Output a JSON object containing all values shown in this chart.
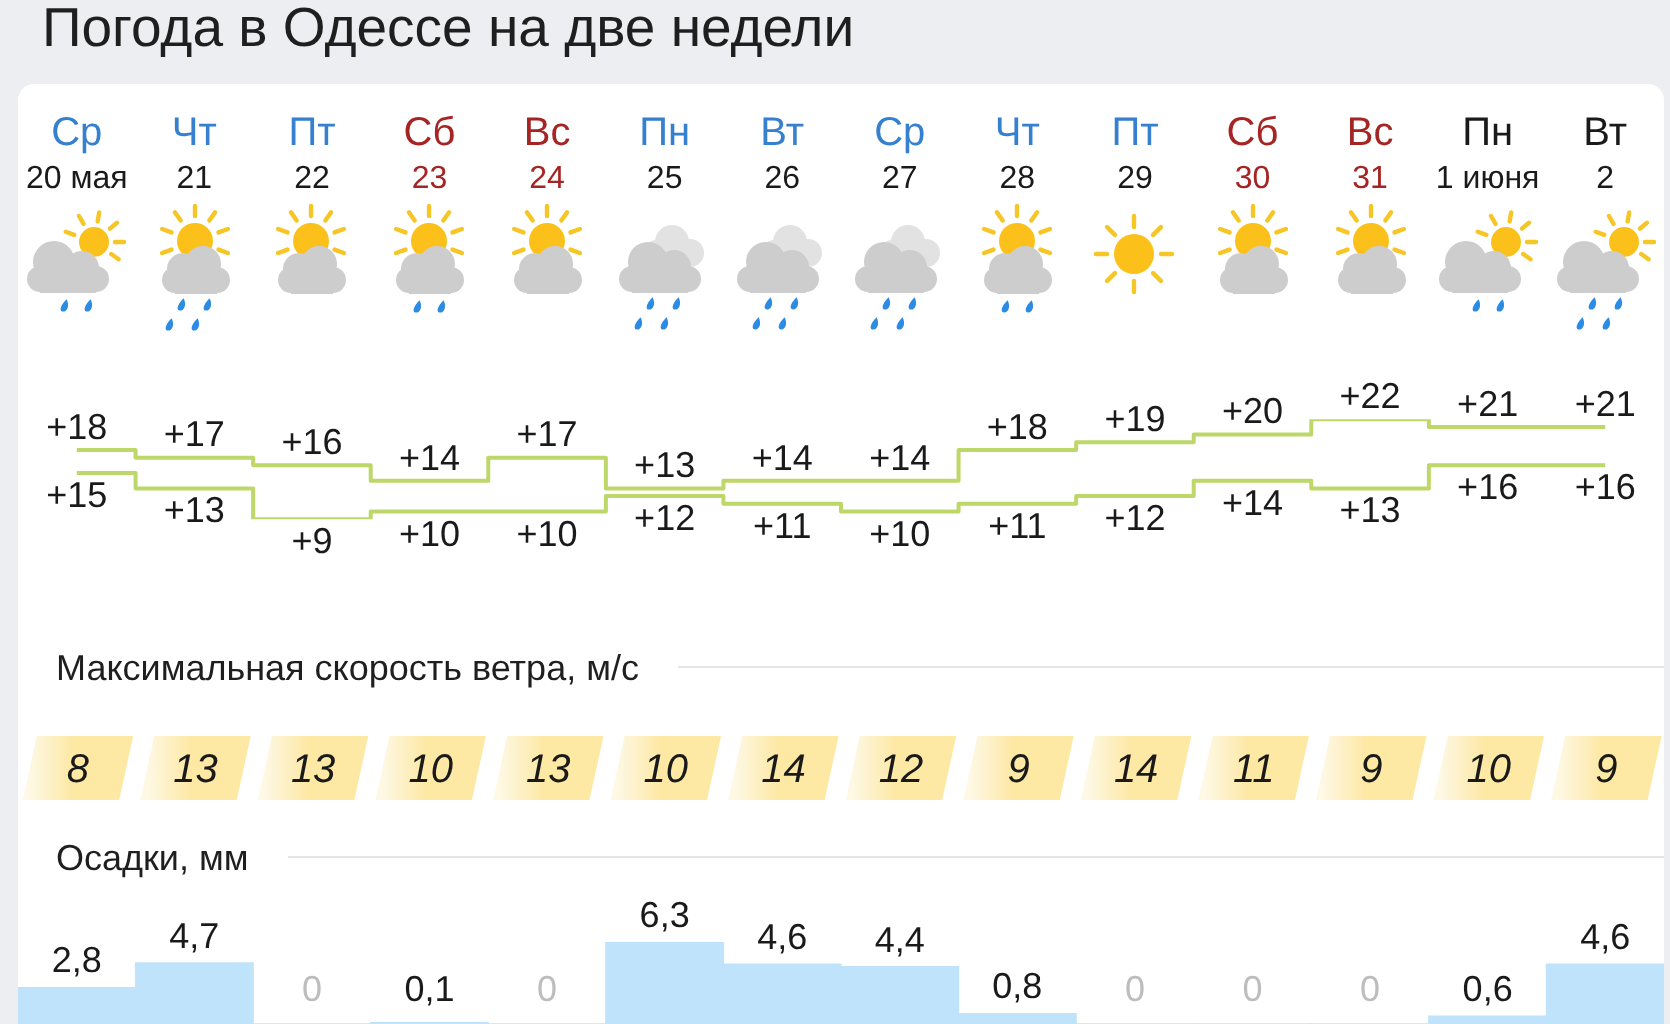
{
  "chart_data": [
    {
      "type": "step",
      "title": "Погода в Одессе на две недели",
      "categories": [
        "Ср\n20 мая",
        "Чт\n21",
        "Пт\n22",
        "Сб\n23",
        "Вс\n24",
        "Пн\n25",
        "Вт\n26",
        "Ср\n27",
        "Чт\n28",
        "Пт\n29",
        "Сб\n30",
        "Вс\n31",
        "Пн\n1 июня",
        "Вт\n2"
      ],
      "tick_labels": "x",
      "series": [
        {
          "color": "#bdd768",
          "values": [
            18,
            17,
            16,
            14,
            17,
            13,
            14,
            14,
            18,
            19,
            20,
            22,
            21,
            21
          ],
          "value_labels": [
            "+18",
            "+17",
            "+16",
            "+14",
            "+17",
            "+13",
            "+14",
            "+14",
            "+18",
            "+19",
            "+20",
            "+22",
            "+21",
            "+21"
          ]
        },
        {
          "color": "#bdd768",
          "values": [
            15,
            13,
            9,
            10,
            10,
            12,
            11,
            10,
            11,
            12,
            14,
            13,
            16,
            16
          ],
          "value_labels": [
            "+15",
            "+13",
            "+9",
            "+10",
            "+10",
            "+12",
            "+11",
            "+10",
            "+11",
            "+12",
            "+14",
            "+13",
            "+16",
            "+16"
          ]
        }
      ]
    },
    {
      "type": "other",
      "title": "Максимальная скорость ветра, м/с",
      "values": [
        8,
        13,
        13,
        10,
        13,
        10,
        14,
        12,
        9,
        14,
        11,
        9,
        10,
        9
      ],
      "color": "#fde8a4",
      "data_labels": true
    },
    {
      "type": "bar",
      "title": "Осадки, мм",
      "categories": [
        null,
        null,
        null,
        null,
        null,
        null,
        null,
        null,
        null,
        null,
        null,
        null,
        null,
        null
      ],
      "tick_labels": false,
      "values": [
        2.8,
        4.7,
        0,
        0.1,
        0,
        6.3,
        4.6,
        4.4,
        0.8,
        0,
        0,
        0,
        0.6,
        4.6
      ],
      "value_labels": [
        "2,8",
        "4,7",
        "0",
        "0,1",
        "0",
        "6,3",
        "4,6",
        "4,4",
        "0,8",
        "0",
        "0",
        "0",
        "0,6",
        "4,6"
      ],
      "color": "#bee3fb"
    }
  ]
}
